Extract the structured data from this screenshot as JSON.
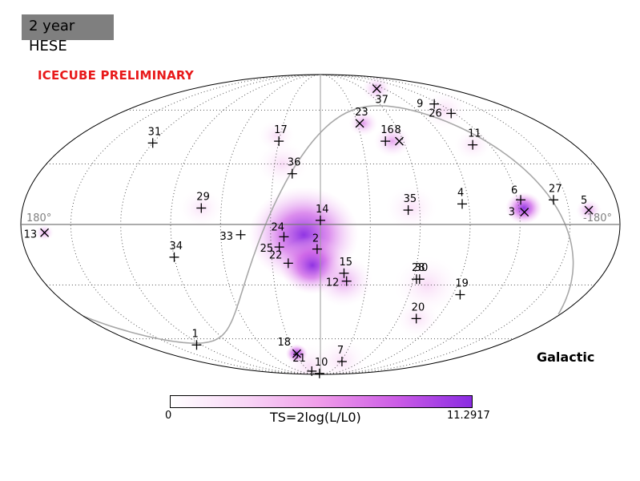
{
  "header": {
    "badge_title": "2 year",
    "badge_subtitle": "HESE",
    "preliminary": "ICECUBE PRELIMINARY",
    "frame": "Galactic"
  },
  "colors": {
    "preliminary": "#e8191a",
    "badge": "#7f7f7f",
    "galactic_plane": "#a8a8a8",
    "ts_low": "#ffffff",
    "ts_high": "#8a2be2"
  },
  "chart_data": {
    "type": "scatter",
    "projection": "mollweide",
    "coordinate_system": "Galactic",
    "longitude_labels": {
      "left": "180°",
      "right": "-180°"
    },
    "colorbar": {
      "min": "0",
      "max": "11.2917",
      "label": "TS=2log(L/L0)"
    },
    "events": [
      {
        "id": "1",
        "l": 125,
        "b": -64,
        "marker": "+"
      },
      {
        "id": "2",
        "l": 2,
        "b": -12,
        "marker": "+",
        "hotspot_ts": 9
      },
      {
        "id": "3",
        "l": -123,
        "b": 6,
        "marker": "x",
        "hotspot_ts": 9
      },
      {
        "id": "4",
        "l": -86,
        "b": 10,
        "marker": "+"
      },
      {
        "id": "5",
        "l": -162,
        "b": 7,
        "marker": "x",
        "hotspot_ts": 6
      },
      {
        "id": "6",
        "l": -122,
        "b": 12,
        "marker": "+"
      },
      {
        "id": "7",
        "l": -32,
        "b": -76,
        "marker": "+"
      },
      {
        "id": "8",
        "l": -57,
        "b": 42,
        "marker": "x",
        "hotspot_ts": 6
      },
      {
        "id": "9",
        "l": -115,
        "b": 64,
        "marker": "+"
      },
      {
        "id": "10",
        "l": 5,
        "b": -88,
        "marker": "+"
      },
      {
        "id": "11",
        "l": -108,
        "b": 40,
        "marker": "+"
      },
      {
        "id": "12",
        "l": -17,
        "b": -28,
        "marker": "+",
        "hotspot_ts": 5
      },
      {
        "id": "13",
        "l": 166,
        "b": -4,
        "marker": "x",
        "hotspot_ts": 6
      },
      {
        "id": "14",
        "l": 0,
        "b": 2,
        "marker": "+"
      },
      {
        "id": "15",
        "l": -15,
        "b": -24,
        "marker": "+"
      },
      {
        "id": "16",
        "l": -47,
        "b": 42,
        "marker": "+"
      },
      {
        "id": "17",
        "l": 30,
        "b": 42,
        "marker": "+"
      },
      {
        "id": "18",
        "l": 28,
        "b": -70,
        "marker": "x",
        "hotspot_ts": 7
      },
      {
        "id": "19",
        "l": -95,
        "b": -35,
        "marker": "+"
      },
      {
        "id": "20",
        "l": -74,
        "b": -48,
        "marker": "+"
      },
      {
        "id": "21",
        "l": 25,
        "b": -85,
        "marker": "+"
      },
      {
        "id": "22",
        "l": 20,
        "b": -19,
        "marker": "+"
      },
      {
        "id": "23",
        "l": -32,
        "b": 52,
        "marker": "x",
        "hotspot_ts": 6
      },
      {
        "id": "24",
        "l": 22,
        "b": -6,
        "marker": "+",
        "hotspot_ts": 10
      },
      {
        "id": "25",
        "l": 25,
        "b": -11,
        "marker": "+"
      },
      {
        "id": "26",
        "l": -117,
        "b": 58,
        "marker": "+"
      },
      {
        "id": "27",
        "l": -142,
        "b": 12,
        "marker": "+"
      },
      {
        "id": "28",
        "l": -62,
        "b": -27,
        "marker": "+"
      },
      {
        "id": "29",
        "l": 72,
        "b": 8,
        "marker": "+"
      },
      {
        "id": "30",
        "l": -64,
        "b": -27,
        "marker": "+"
      },
      {
        "id": "31",
        "l": 120,
        "b": 41,
        "marker": "+"
      },
      {
        "id": "33",
        "l": 48,
        "b": -5,
        "marker": "+"
      },
      {
        "id": "34",
        "l": 90,
        "b": -16,
        "marker": "+"
      },
      {
        "id": "35",
        "l": -53,
        "b": 7,
        "marker": "+"
      },
      {
        "id": "36",
        "l": 18,
        "b": 25,
        "marker": "+"
      },
      {
        "id": "37",
        "l": -80,
        "b": 75,
        "marker": "x",
        "hotspot_ts": 6
      }
    ],
    "ts_regions": [
      {
        "l": 10,
        "b": -5,
        "size": 30,
        "ts": 11.29
      },
      {
        "l": 5,
        "b": -20,
        "size": 18,
        "ts": 8
      },
      {
        "l": -15,
        "b": -28,
        "size": 16,
        "ts": 5
      },
      {
        "l": 25,
        "b": 30,
        "size": 14,
        "ts": 3
      },
      {
        "l": 33,
        "b": 45,
        "size": 10,
        "ts": 2
      },
      {
        "l": -35,
        "b": 52,
        "size": 8,
        "ts": 6
      },
      {
        "l": -52,
        "b": 42,
        "size": 10,
        "ts": 5
      },
      {
        "l": -123,
        "b": 8,
        "size": 10,
        "ts": 9
      },
      {
        "l": -162,
        "b": 7,
        "size": 7,
        "ts": 6
      },
      {
        "l": -115,
        "b": 60,
        "size": 12,
        "ts": 2
      },
      {
        "l": -80,
        "b": 75,
        "size": 8,
        "ts": 4
      },
      {
        "l": 28,
        "b": -70,
        "size": 6,
        "ts": 7
      },
      {
        "l": 20,
        "b": -80,
        "size": 14,
        "ts": 2
      },
      {
        "l": -70,
        "b": -30,
        "size": 18,
        "ts": 3
      },
      {
        "l": -75,
        "b": -48,
        "size": 12,
        "ts": 2
      },
      {
        "l": -30,
        "b": -75,
        "size": 14,
        "ts": 2
      },
      {
        "l": -55,
        "b": 8,
        "size": 14,
        "ts": 2
      },
      {
        "l": 72,
        "b": 8,
        "size": 12,
        "ts": 1.5
      },
      {
        "l": 166,
        "b": -4,
        "size": 5,
        "ts": 6
      },
      {
        "l": -108,
        "b": 40,
        "size": 10,
        "ts": 2
      }
    ],
    "galactic_plane_visible": true,
    "graticule": true
  }
}
